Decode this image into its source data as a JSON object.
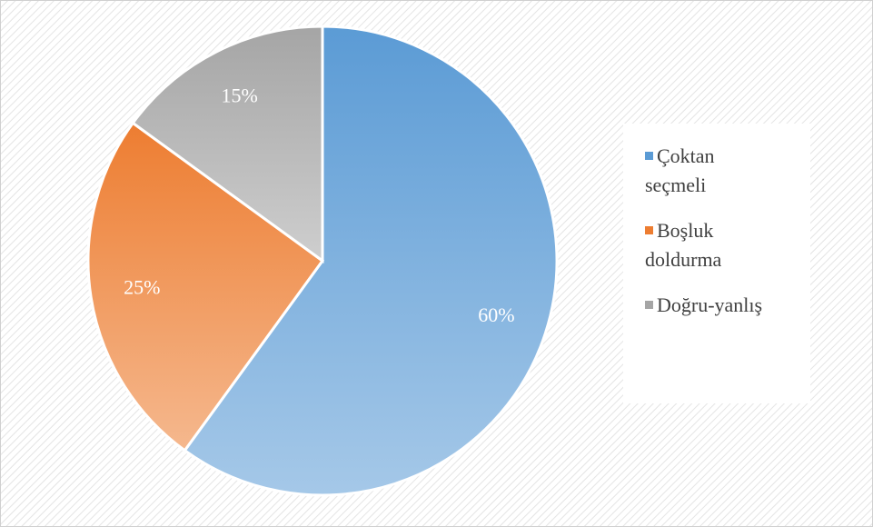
{
  "chart_data": {
    "type": "pie",
    "categories": [
      "Çoktan seçmeli",
      "Boşluk doldurma",
      "Doğru-yanlış"
    ],
    "values": [
      60,
      25,
      15
    ],
    "value_labels": [
      "60%",
      "25%",
      "15%"
    ],
    "colors": [
      "#5b9bd5",
      "#ed7d31",
      "#a5a5a5"
    ],
    "legend": "right"
  }
}
